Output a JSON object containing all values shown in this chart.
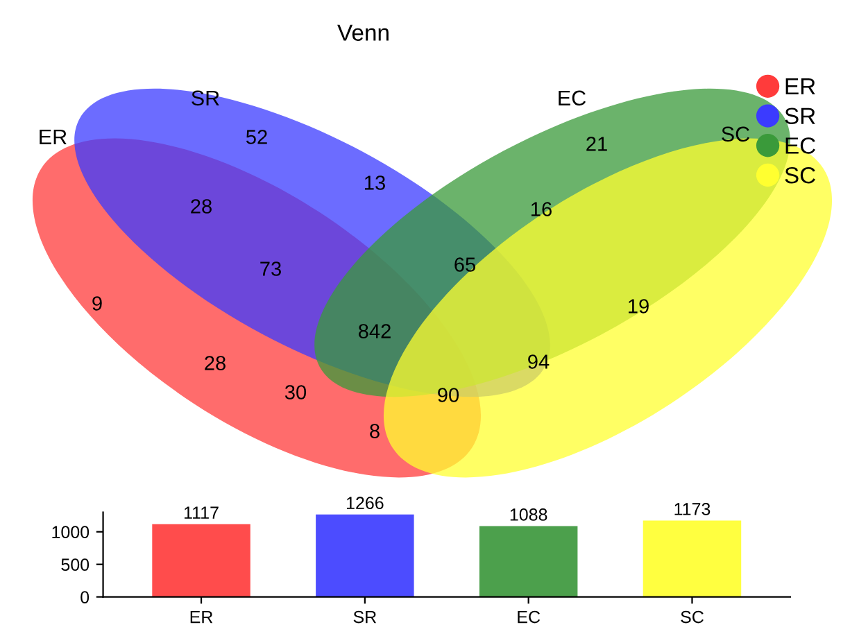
{
  "chart_data": [
    {
      "type": "other",
      "title": "Venn",
      "series": [
        {
          "name": "ER",
          "color": "#ff3b3b"
        },
        {
          "name": "SR",
          "color": "#3b3bff"
        },
        {
          "name": "EC",
          "color": "#3a9a3a"
        },
        {
          "name": "SC",
          "color": "#ffff30"
        }
      ],
      "annotations": [
        "9",
        "52",
        "21",
        "19",
        "28",
        "13",
        "16",
        "73",
        "65",
        "842",
        "28",
        "30",
        "90",
        "94",
        "8"
      ],
      "legend": "top right"
    },
    {
      "type": "bar",
      "categories": [
        "ER",
        "SR",
        "EC",
        "SC"
      ],
      "values": [
        1117,
        1266,
        1088,
        1173
      ],
      "colors": [
        "#ff4c4c",
        "#4c4cff",
        "#4ca04c",
        "#ffff40"
      ],
      "ylim": [
        0,
        1300
      ],
      "yticks": [
        0,
        500,
        1000
      ],
      "data_labels": true
    }
  ]
}
